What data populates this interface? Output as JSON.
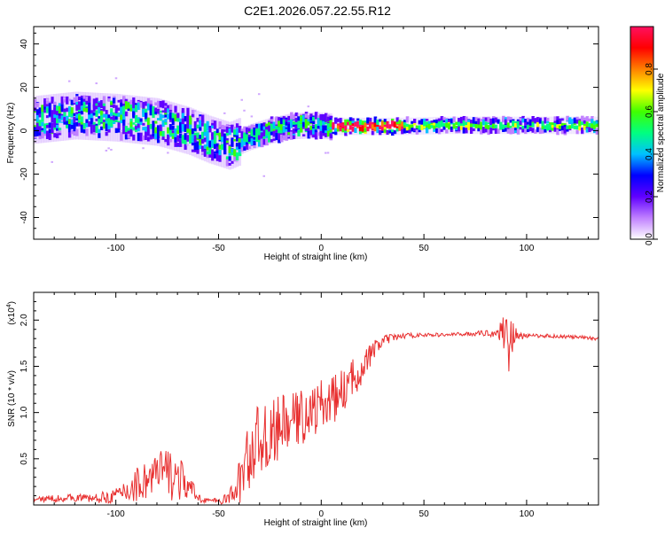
{
  "title": "C2E1.2026.057.22.55.R12",
  "chart_data": [
    {
      "type": "heatmap",
      "xlabel": "Height of straight line (km)",
      "ylabel": "Frequency (Hz)",
      "xlim": [
        -140,
        135
      ],
      "ylim": [
        -50,
        48
      ],
      "xticks": [
        -100,
        -50,
        0,
        50,
        100
      ],
      "xtick_labels": [
        "-100",
        "-50",
        "0",
        "50",
        "100"
      ],
      "yticks": [
        -40,
        -20,
        0,
        20,
        40
      ],
      "ytick_labels": [
        "-40",
        "-20",
        "0",
        "20",
        "40"
      ],
      "ridge": {
        "x": [
          -140,
          -120,
          -100,
          -80,
          -65,
          -55,
          -45,
          -35,
          -25,
          -15,
          -5,
          5,
          20,
          40,
          60,
          80,
          90,
          100,
          135
        ],
        "y": [
          5,
          7,
          6,
          4,
          0,
          -4,
          -7,
          -3,
          0,
          2,
          2.5,
          2,
          2,
          2,
          2.5,
          2.5,
          2.5,
          2.5,
          2.5
        ]
      },
      "colorbar": {
        "label": "Normalized spectral amplitude",
        "range": [
          0,
          1
        ],
        "ticks": [
          0.0,
          0.2,
          0.4,
          0.6,
          0.8
        ],
        "tick_labels": [
          "0.0",
          "0.2",
          "0.4",
          "0.6",
          "0.8"
        ],
        "colors": [
          "#ffffff",
          "#c080ff",
          "#6000ff",
          "#0000ff",
          "#00c0ff",
          "#00ff80",
          "#40ff00",
          "#ffff00",
          "#ff8000",
          "#ff0000",
          "#ff1060"
        ]
      }
    },
    {
      "type": "line",
      "xlabel": "Height of straight line (km)",
      "ylabel": "SNR (10 * v/v)",
      "multiplier": "(x10",
      "multiplier_exp": "4",
      "multiplier_close": ")",
      "xlim": [
        -140,
        135
      ],
      "ylim": [
        0,
        2.3
      ],
      "xticks": [
        -100,
        -50,
        0,
        50,
        100
      ],
      "xtick_labels": [
        "-100",
        "-50",
        "0",
        "50",
        "100"
      ],
      "yticks": [
        0.5,
        1.0,
        1.5,
        2.0
      ],
      "ytick_labels": [
        "0.5",
        "1.0",
        "1.5",
        "2.0"
      ],
      "line_color": "#e83030",
      "series": [
        {
          "name": "SNR",
          "x": [
            -140,
            -130,
            -120,
            -110,
            -100,
            -95,
            -90,
            -85,
            -80,
            -75,
            -70,
            -65,
            -60,
            -55,
            -50,
            -47,
            -44,
            -41,
            -38,
            -35,
            -32,
            -29,
            -26,
            -23,
            -20,
            -15,
            -10,
            -5,
            0,
            5,
            10,
            15,
            20,
            25,
            30,
            40,
            50,
            60,
            70,
            80,
            85,
            88,
            90,
            91,
            92,
            93,
            94,
            96,
            100,
            110,
            120,
            135
          ],
          "y": [
            0.06,
            0.07,
            0.08,
            0.07,
            0.1,
            0.15,
            0.22,
            0.28,
            0.32,
            0.35,
            0.3,
            0.2,
            0.08,
            0.05,
            0.04,
            0.06,
            0.1,
            0.2,
            0.35,
            0.55,
            0.65,
            0.75,
            0.7,
            0.78,
            0.85,
            0.9,
            0.95,
            1.0,
            1.08,
            1.12,
            1.22,
            1.35,
            1.5,
            1.65,
            1.78,
            1.83,
            1.84,
            1.84,
            1.85,
            1.86,
            1.86,
            1.88,
            1.9,
            1.85,
            1.8,
            1.86,
            1.84,
            1.82,
            1.83,
            1.83,
            1.82,
            1.8
          ],
          "noise": [
            0.03,
            0.04,
            0.04,
            0.05,
            0.08,
            0.14,
            0.2,
            0.24,
            0.28,
            0.3,
            0.26,
            0.16,
            0.06,
            0.03,
            0.03,
            0.05,
            0.1,
            0.2,
            0.35,
            0.4,
            0.4,
            0.4,
            0.36,
            0.36,
            0.34,
            0.32,
            0.3,
            0.3,
            0.28,
            0.26,
            0.24,
            0.22,
            0.18,
            0.12,
            0.06,
            0.03,
            0.02,
            0.02,
            0.02,
            0.03,
            0.05,
            0.12,
            0.3,
            0.45,
            0.4,
            0.25,
            0.12,
            0.05,
            0.02,
            0.02,
            0.02,
            0.02
          ]
        }
      ]
    }
  ]
}
